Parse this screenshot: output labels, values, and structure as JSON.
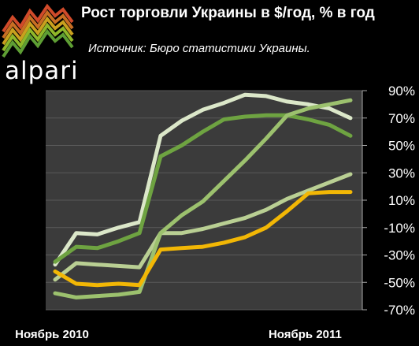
{
  "brand": {
    "name": "alpari"
  },
  "header": {
    "title": "Рост торговли Украины в $/год, % в год",
    "source": "Источник: Бюро статистики Украины."
  },
  "colors": {
    "background": "#000000",
    "plot_area": "#3b3b3b",
    "grid": "#5a5a5a"
  },
  "chart_data": {
    "type": "line",
    "title": "Рост торговли Украины в $/год, % в год",
    "xlabel": "",
    "ylabel": "",
    "x": [
      "Ноябрь 2010",
      "Декабрь 2010",
      "Январь 2011",
      "Февраль 2011",
      "Март 2011",
      "Апрель 2011",
      "Май 2011",
      "Июнь 2011",
      "Июль 2011",
      "Август 2011",
      "Сентябрь 2011",
      "Октябрь 2011",
      "Ноябрь 2011",
      "Декабрь 2011",
      "Январь 2012"
    ],
    "x_ticks": [
      "Ноябрь 2010",
      "Ноябрь 2011"
    ],
    "y_ticks": [
      "90%",
      "70%",
      "50%",
      "30%",
      "10%",
      "-10%",
      "-30%",
      "-50%",
      "-70%"
    ],
    "ylim": [
      -70,
      90
    ],
    "y_axis_side": "right",
    "grid": true,
    "legend": "none",
    "series": [
      {
        "color": "#dbe7c9",
        "values": [
          -37,
          -14,
          -15,
          -10,
          -6,
          57,
          68,
          76,
          81,
          87,
          86,
          82,
          80,
          77,
          70
        ]
      },
      {
        "color": "#6ea341",
        "values": [
          -35,
          -24,
          -25,
          -20,
          -14,
          42,
          50,
          60,
          69,
          71,
          72,
          72,
          69,
          65,
          57
        ]
      },
      {
        "color": "#b9cf93",
        "values": [
          -48,
          -36,
          -37,
          -38,
          -39,
          -14,
          -14,
          -11,
          -7,
          -3,
          3,
          11,
          17,
          23,
          29
        ]
      },
      {
        "color": "#9cc16e",
        "values": [
          -58,
          -61,
          -60,
          -59,
          -57,
          -14,
          -1,
          9,
          24,
          39,
          55,
          72,
          77,
          80,
          83
        ]
      },
      {
        "color": "#f2b705",
        "values": [
          -42,
          -51,
          -52,
          -51,
          -52,
          -26,
          -25,
          -24,
          -21,
          -17,
          -10,
          2,
          15,
          16,
          16
        ]
      }
    ]
  }
}
